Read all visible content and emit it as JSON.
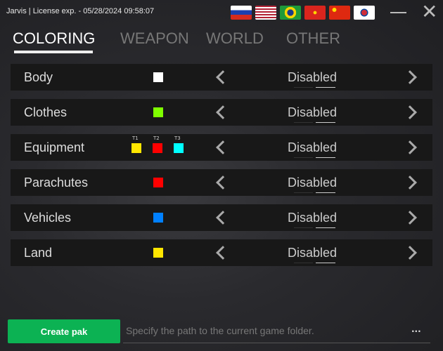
{
  "title": "Jarvis | License exp. - 05/28/2024 09:58:07",
  "flags": [
    {
      "name": "russia",
      "css": "linear-gradient(#fff 33%,#1c3fae 33%,#1c3fae 66%,#d52b1e 66%)"
    },
    {
      "name": "usa",
      "css": "repeating-linear-gradient(#b22234 0 2px,#fff 2px 4px)"
    },
    {
      "name": "brazil",
      "css": "radial-gradient(circle,#1a3a8a 25%,#f7d500 26%,#f7d500 45%,#1e9a3a 46%)"
    },
    {
      "name": "vietnam",
      "css": "radial-gradient(circle,#ffd500 12%,#da251d 14%)"
    },
    {
      "name": "china",
      "css": "radial-gradient(circle at 25% 30%,#ffde00 10%,#de2910 12%)"
    },
    {
      "name": "korea",
      "css": "radial-gradient(circle,#cd2e3a 0 22%,#0047a0 22% 30%,#fff 31%)"
    }
  ],
  "tabs": [
    {
      "label": "COLORING"
    },
    {
      "label": "WEAPON"
    },
    {
      "label": "WORLD"
    },
    {
      "label": "OTHER"
    }
  ],
  "rows": [
    {
      "label": "Body",
      "colors": [
        "#ffffff"
      ],
      "value": "Disabled"
    },
    {
      "label": "Clothes",
      "colors": [
        "#7fff00"
      ],
      "value": "Disabled"
    },
    {
      "label": "Equipment",
      "colors": [
        "#ffe600",
        "#ff0000",
        "#00ffff"
      ],
      "tiers": [
        "T1",
        "T2",
        "T3"
      ],
      "value": "Disabled"
    },
    {
      "label": "Parachutes",
      "colors": [
        "#ff0000"
      ],
      "value": "Disabled"
    },
    {
      "label": "Vehicles",
      "colors": [
        "#0080ff"
      ],
      "value": "Disabled"
    },
    {
      "label": "Land",
      "colors": [
        "#ffe600"
      ],
      "value": "Disabled"
    }
  ],
  "footer": {
    "create_label": "Create pak",
    "path_placeholder": "Specify the path to the current game folder.",
    "browse_label": "..."
  },
  "accent": "#0cb253"
}
